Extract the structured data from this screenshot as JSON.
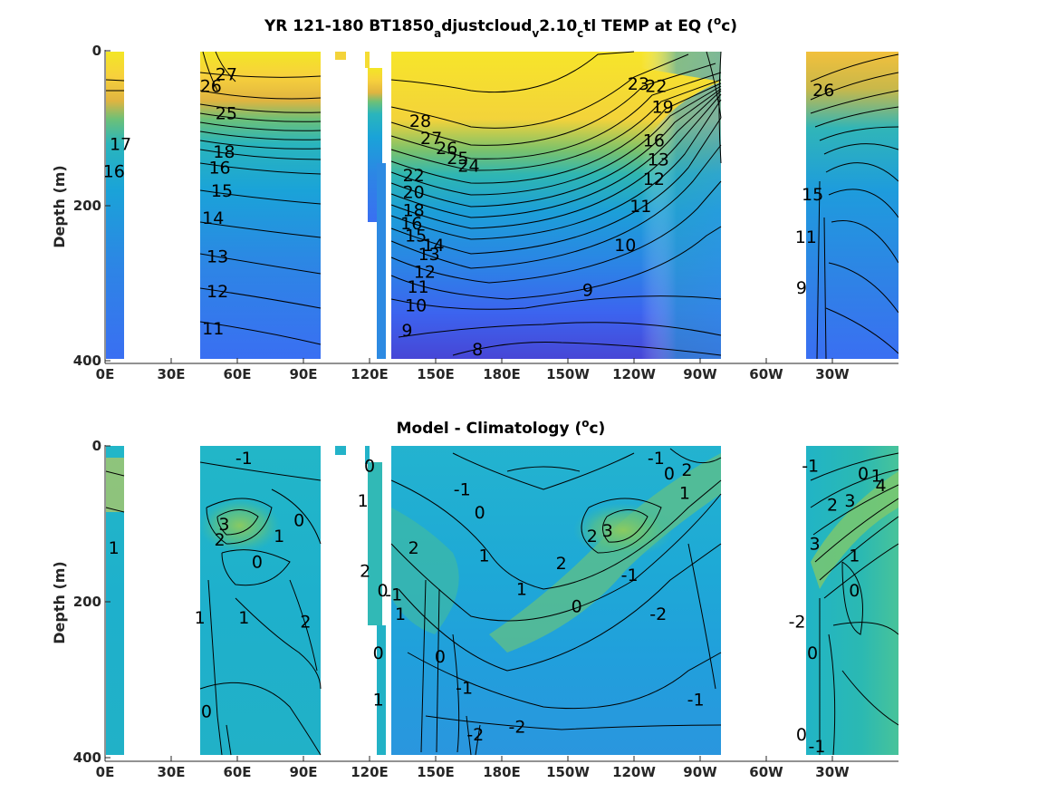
{
  "chart_data": [
    {
      "type": "heatmap",
      "title": "YR 121-180 BT1850_adjustcloud_v2.10_ctl TEMP at EQ (°c)",
      "title_parts": {
        "a": "YR 121-180 BT1850",
        "b": "a",
        "c": "djustcloud",
        "d": "v",
        "e": "2.10",
        "f": "c",
        "g": "tl TEMP at EQ (",
        "h": "o",
        "i": "c)"
      },
      "ylabel": "Depth (m)",
      "y_ticks": [
        "0",
        "200",
        "400"
      ],
      "x_ticks": [
        "0E",
        "30E",
        "60E",
        "90E",
        "120E",
        "150E",
        "180E",
        "150W",
        "120W",
        "90W",
        "60W",
        "30W"
      ],
      "xlim": [
        "0E",
        "360E"
      ],
      "ylim": [
        400,
        0
      ],
      "colormap": "parula",
      "contour_labels": [
        {
          "label": "27",
          "x": 55,
          "y": 30
        },
        {
          "label": "26",
          "x": 48,
          "y": 45
        },
        {
          "label": "25",
          "x": 55,
          "y": 80
        },
        {
          "label": "17",
          "x": 7,
          "y": 120
        },
        {
          "label": "16",
          "x": 4,
          "y": 155
        },
        {
          "label": "18",
          "x": 54,
          "y": 130
        },
        {
          "label": "16",
          "x": 52,
          "y": 150
        },
        {
          "label": "15",
          "x": 53,
          "y": 180
        },
        {
          "label": "14",
          "x": 49,
          "y": 215
        },
        {
          "label": "13",
          "x": 51,
          "y": 265
        },
        {
          "label": "12",
          "x": 51,
          "y": 310
        },
        {
          "label": "11",
          "x": 49,
          "y": 358
        },
        {
          "label": "28",
          "x": 143,
          "y": 90
        },
        {
          "label": "27",
          "x": 148,
          "y": 112
        },
        {
          "label": "26",
          "x": 155,
          "y": 125
        },
        {
          "label": "25",
          "x": 160,
          "y": 138
        },
        {
          "label": "24",
          "x": 165,
          "y": 148
        },
        {
          "label": "22",
          "x": 140,
          "y": 160
        },
        {
          "label": "20",
          "x": 140,
          "y": 182
        },
        {
          "label": "18",
          "x": 140,
          "y": 205
        },
        {
          "label": "16",
          "x": 139,
          "y": 222
        },
        {
          "label": "15",
          "x": 141,
          "y": 238
        },
        {
          "label": "14",
          "x": 149,
          "y": 250
        },
        {
          "label": "13",
          "x": 147,
          "y": 262
        },
        {
          "label": "12",
          "x": 145,
          "y": 285
        },
        {
          "label": "11",
          "x": 142,
          "y": 304
        },
        {
          "label": "10",
          "x": 141,
          "y": 328
        },
        {
          "label": "9",
          "x": 137,
          "y": 360
        },
        {
          "label": "9",
          "x": 219,
          "y": 308
        },
        {
          "label": "8",
          "x": 169,
          "y": 385
        },
        {
          "label": "10",
          "x": 236,
          "y": 250
        },
        {
          "label": "11",
          "x": 243,
          "y": 200
        },
        {
          "label": "12",
          "x": 249,
          "y": 165
        },
        {
          "label": "13",
          "x": 251,
          "y": 140
        },
        {
          "label": "16",
          "x": 249,
          "y": 115
        },
        {
          "label": "23",
          "x": 242,
          "y": 42
        },
        {
          "label": "22",
          "x": 250,
          "y": 45
        },
        {
          "label": "19",
          "x": 253,
          "y": 72
        },
        {
          "label": "26",
          "x": 326,
          "y": 50
        },
        {
          "label": "15",
          "x": 321,
          "y": 185
        },
        {
          "label": "11",
          "x": 318,
          "y": 240
        },
        {
          "label": "9",
          "x": 316,
          "y": 305
        }
      ]
    },
    {
      "type": "heatmap",
      "title": "Model - Climatology (°c)",
      "title_parts": {
        "a": "Model - Climatology (",
        "h": "o",
        "i": "c)"
      },
      "ylabel": "Depth (m)",
      "y_ticks": [
        "0",
        "200",
        "400"
      ],
      "x_ticks": [
        "0E",
        "30E",
        "60E",
        "90E",
        "120E",
        "150E",
        "180E",
        "150W",
        "120W",
        "90W",
        "60W",
        "30W"
      ],
      "xlim": [
        "0E",
        "360E"
      ],
      "ylim": [
        400,
        0
      ],
      "colormap": "parula",
      "contour_labels": [
        {
          "label": "-1",
          "x": 63,
          "y": 15
        },
        {
          "label": "0",
          "x": 88,
          "y": 95
        },
        {
          "label": "1",
          "x": 79,
          "y": 115
        },
        {
          "label": "2",
          "x": 52,
          "y": 120
        },
        {
          "label": "3",
          "x": 54,
          "y": 100
        },
        {
          "label": "0",
          "x": 69,
          "y": 148
        },
        {
          "label": "1",
          "x": 4,
          "y": 130
        },
        {
          "label": "1",
          "x": 43,
          "y": 220
        },
        {
          "label": "1",
          "x": 63,
          "y": 220
        },
        {
          "label": "2",
          "x": 91,
          "y": 225
        },
        {
          "label": "0",
          "x": 46,
          "y": 340
        },
        {
          "label": "0",
          "x": 120,
          "y": 25
        },
        {
          "label": "1",
          "x": 117,
          "y": 70
        },
        {
          "label": "2",
          "x": 118,
          "y": 160
        },
        {
          "label": "0",
          "x": 126,
          "y": 185
        },
        {
          "label": "-1",
          "x": 131,
          "y": 190
        },
        {
          "label": "1",
          "x": 134,
          "y": 215
        },
        {
          "label": "2",
          "x": 140,
          "y": 130
        },
        {
          "label": "0",
          "x": 124,
          "y": 265
        },
        {
          "label": "1",
          "x": 124,
          "y": 325
        },
        {
          "label": "0",
          "x": 152,
          "y": 270
        },
        {
          "label": "-1",
          "x": 163,
          "y": 310
        },
        {
          "label": "-2",
          "x": 168,
          "y": 370
        },
        {
          "label": "-2",
          "x": 187,
          "y": 360
        },
        {
          "label": "-1",
          "x": 162,
          "y": 55
        },
        {
          "label": "0",
          "x": 170,
          "y": 85
        },
        {
          "label": "1",
          "x": 172,
          "y": 140
        },
        {
          "label": "1",
          "x": 189,
          "y": 183
        },
        {
          "label": "2",
          "x": 207,
          "y": 150
        },
        {
          "label": "2",
          "x": 221,
          "y": 115
        },
        {
          "label": "3",
          "x": 228,
          "y": 108
        },
        {
          "label": "0",
          "x": 214,
          "y": 205
        },
        {
          "label": "-1",
          "x": 238,
          "y": 165
        },
        {
          "label": "-2",
          "x": 251,
          "y": 215
        },
        {
          "label": "-1",
          "x": 268,
          "y": 325
        },
        {
          "label": "-1",
          "x": 250,
          "y": 15
        },
        {
          "label": "0",
          "x": 256,
          "y": 35
        },
        {
          "label": "1",
          "x": 263,
          "y": 60
        },
        {
          "label": "2",
          "x": 264,
          "y": 30
        },
        {
          "label": "-1",
          "x": 320,
          "y": 25
        },
        {
          "label": "0",
          "x": 344,
          "y": 35
        },
        {
          "label": "1",
          "x": 350,
          "y": 38
        },
        {
          "label": "2",
          "x": 330,
          "y": 75
        },
        {
          "label": "3",
          "x": 338,
          "y": 70
        },
        {
          "label": "4",
          "x": 352,
          "y": 50
        },
        {
          "label": "3",
          "x": 322,
          "y": 125
        },
        {
          "label": "1",
          "x": 340,
          "y": 140
        },
        {
          "label": "0",
          "x": 340,
          "y": 185
        },
        {
          "label": "-2",
          "x": 314,
          "y": 225
        },
        {
          "label": "0",
          "x": 321,
          "y": 265
        },
        {
          "label": "0",
          "x": 316,
          "y": 370
        },
        {
          "label": "-1",
          "x": 323,
          "y": 385
        }
      ]
    }
  ]
}
